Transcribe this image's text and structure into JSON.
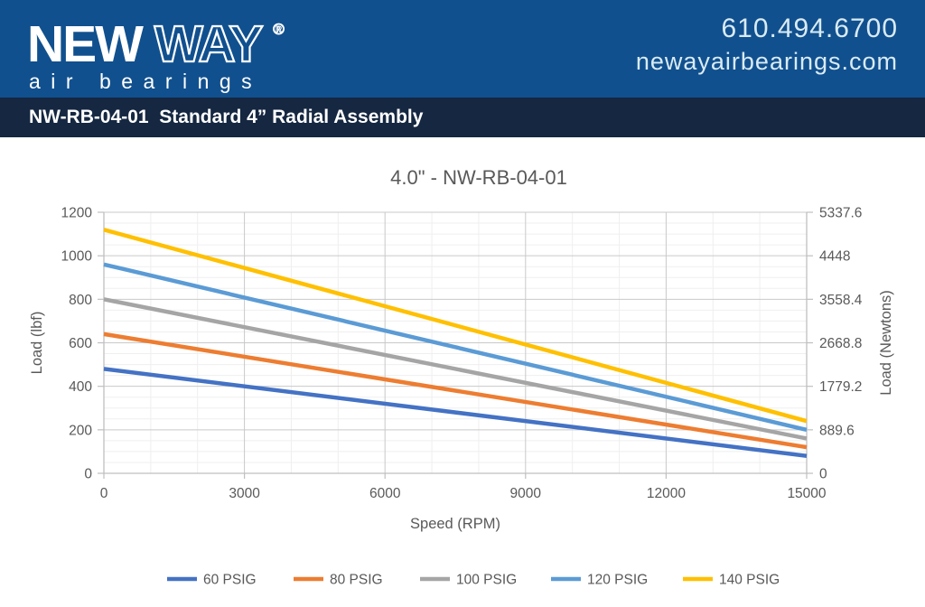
{
  "header": {
    "logo": {
      "word_solid": "NEW",
      "word_outline": "WAY",
      "registered_mark": "®",
      "tagline": "air bearings"
    },
    "phone": "610.494.6700",
    "website": "newayairbearings.com"
  },
  "title_bar": {
    "text": "NW-RB-04-01  Standard 4” Radial Assembly"
  },
  "colors": {
    "header_bg": "#11508E",
    "title_bar_bg": "#152741",
    "header_text": "#D9EBF4",
    "chart_text": "#595959",
    "gridline_major": "#C9C9C9",
    "gridline_minor": "#EFEFEF",
    "axis_line": "#BFBFBF"
  },
  "chart_data": {
    "type": "line",
    "title": "4.0\" - NW-RB-04-01",
    "xlabel": "Speed (RPM)",
    "ylabel_left": "Load (lbf)",
    "ylabel_right": "Load (Newtons)",
    "xlim": [
      0,
      15000
    ],
    "ylim_left": [
      0,
      1200
    ],
    "ylim_right": [
      0,
      5337.6
    ],
    "x_major_ticks": [
      0,
      3000,
      6000,
      9000,
      12000,
      15000
    ],
    "x_minor_step": 1000,
    "y_major_ticks_left": [
      0,
      200,
      400,
      600,
      800,
      1000,
      1200
    ],
    "y_major_tick_labels_right": [
      "0",
      "889.6",
      "1779.2",
      "2668.8",
      "3558.4",
      "4448",
      "5337.6"
    ],
    "y_minor_step": 50,
    "grid": {
      "major": true,
      "minor": true
    },
    "legend_position": "bottom",
    "series": [
      {
        "name": "60 PSIG",
        "color": "#4472C4",
        "points": [
          {
            "x": 0,
            "y": 480
          },
          {
            "x": 15000,
            "y": 80
          }
        ]
      },
      {
        "name": "80 PSIG",
        "color": "#ED7D31",
        "points": [
          {
            "x": 0,
            "y": 640
          },
          {
            "x": 15000,
            "y": 120
          }
        ]
      },
      {
        "name": "100 PSIG",
        "color": "#A5A5A5",
        "points": [
          {
            "x": 0,
            "y": 800
          },
          {
            "x": 15000,
            "y": 160
          }
        ]
      },
      {
        "name": "120 PSIG",
        "color": "#5B9BD5",
        "points": [
          {
            "x": 0,
            "y": 960
          },
          {
            "x": 15000,
            "y": 200
          }
        ]
      },
      {
        "name": "140 PSIG",
        "color": "#FFC000",
        "points": [
          {
            "x": 0,
            "y": 1120
          },
          {
            "x": 15000,
            "y": 240
          }
        ]
      }
    ]
  }
}
